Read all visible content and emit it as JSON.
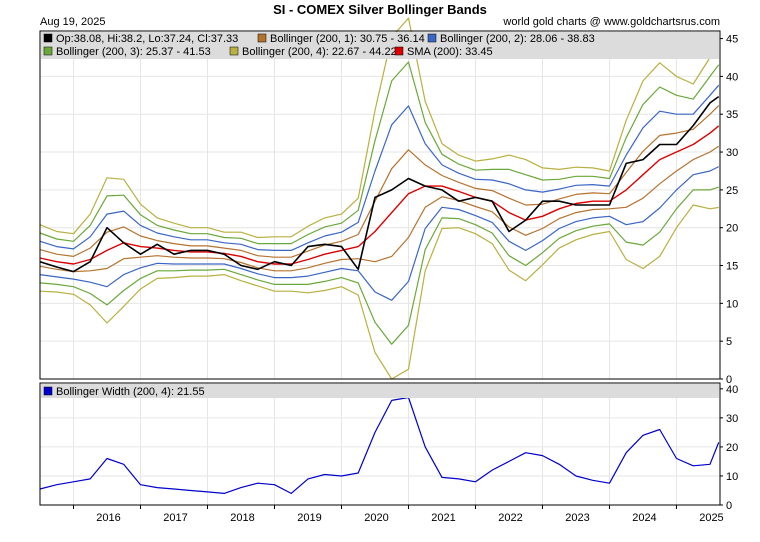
{
  "header": {
    "title": "SI  -  COMEX Silver Bollinger Bands",
    "date": "Aug 19, 2025",
    "credit": "world gold charts @ www.goldchartsrus.com"
  },
  "chart_data": [
    {
      "type": "line",
      "panel": "price",
      "xlim": [
        2015.5,
        2025.65
      ],
      "ylim": [
        0,
        46
      ],
      "y_ticks": [
        0,
        5,
        10,
        15,
        20,
        25,
        30,
        35,
        40,
        45
      ],
      "x_ticks": [
        "2016",
        "2017",
        "2018",
        "2019",
        "2020",
        "2021",
        "2022",
        "2023",
        "2024",
        "2025"
      ],
      "x_tick_positions": [
        2016,
        2017,
        2018,
        2019,
        2020,
        2021,
        2022,
        2023,
        2024,
        2025
      ],
      "grid": true,
      "legend_position": "top",
      "legend": [
        {
          "label": "Op:38.08, Hi:38.2, Lo:37.24, Cl:37.33",
          "color": "#000000"
        },
        {
          "label": "Bollinger (200, 1): 30.75 - 36.14",
          "color": "#b5732e"
        },
        {
          "label": "Bollinger (200, 2): 28.06 - 38.83",
          "color": "#3a66c4"
        },
        {
          "label": "Bollinger (200, 3): 25.37 - 41.53",
          "color": "#6aa83a"
        },
        {
          "label": "Bollinger (200, 4): 22.67 - 44.22",
          "color": "#b9b040"
        },
        {
          "label": "SMA (200): 33.45",
          "color": "#dd0000"
        }
      ],
      "x": [
        2015.5,
        2015.75,
        2016.0,
        2016.25,
        2016.5,
        2016.75,
        2017.0,
        2017.25,
        2017.5,
        2017.75,
        2018.0,
        2018.25,
        2018.5,
        2018.75,
        2019.0,
        2019.25,
        2019.5,
        2019.75,
        2020.0,
        2020.25,
        2020.5,
        2020.75,
        2021.0,
        2021.25,
        2021.5,
        2021.75,
        2022.0,
        2022.25,
        2022.5,
        2022.75,
        2023.0,
        2023.25,
        2023.5,
        2023.75,
        2024.0,
        2024.25,
        2024.5,
        2024.75,
        2025.0,
        2025.25,
        2025.5,
        2025.63
      ],
      "series": [
        {
          "key": "price",
          "color": "#000000",
          "values": [
            15.5,
            14.8,
            14.2,
            15.5,
            20.0,
            18.0,
            16.5,
            17.8,
            16.5,
            17.0,
            17.0,
            16.5,
            15.0,
            14.5,
            15.5,
            15.0,
            17.5,
            17.8,
            17.5,
            14.5,
            24.0,
            25.0,
            26.5,
            25.5,
            25.0,
            23.5,
            24.0,
            23.5,
            19.5,
            21.0,
            23.5,
            23.5,
            23.0,
            23.0,
            23.0,
            28.5,
            29.0,
            31.0,
            31.0,
            33.5,
            36.5,
            37.33
          ]
        },
        {
          "key": "sma",
          "color": "#dd0000",
          "values": [
            16.0,
            15.5,
            15.2,
            15.8,
            17.0,
            18.0,
            17.5,
            17.3,
            17.0,
            16.8,
            16.8,
            16.6,
            16.2,
            15.5,
            15.2,
            15.2,
            15.8,
            16.5,
            17.0,
            17.5,
            19.5,
            22.0,
            24.5,
            25.5,
            25.5,
            24.8,
            24.0,
            23.5,
            22.0,
            21.0,
            21.5,
            22.5,
            23.2,
            23.5,
            23.5,
            25.0,
            27.0,
            29.0,
            30.0,
            31.0,
            32.5,
            33.45
          ]
        },
        {
          "key": "bw1",
          "color": "#b5732e",
          "width": [
            1.1,
            1.0,
            1.0,
            1.5,
            2.4,
            2.1,
            1.4,
            1.0,
            0.9,
            0.8,
            0.8,
            0.7,
            0.8,
            0.8,
            0.9,
            0.9,
            1.1,
            1.2,
            1.2,
            1.6,
            4.0,
            5.8,
            5.8,
            2.8,
            1.4,
            1.2,
            1.2,
            1.4,
            1.9,
            2.0,
            1.6,
            1.3,
            1.2,
            1.1,
            1.0,
            2.3,
            3.1,
            3.2,
            2.5,
            2.0,
            2.5,
            2.69
          ]
        },
        {
          "key": "bw2",
          "color": "#3a66c4",
          "width": [
            2.2,
            2.0,
            2.0,
            3.0,
            4.8,
            4.2,
            2.8,
            2.0,
            1.8,
            1.6,
            1.6,
            1.4,
            1.6,
            1.6,
            1.8,
            1.8,
            2.2,
            2.4,
            2.4,
            3.2,
            8.0,
            11.6,
            11.6,
            5.6,
            2.8,
            2.4,
            2.4,
            2.8,
            3.8,
            4.0,
            3.2,
            2.6,
            2.4,
            2.2,
            2.0,
            4.6,
            6.2,
            6.4,
            5.0,
            4.0,
            5.0,
            5.38
          ]
        },
        {
          "key": "bw3",
          "color": "#6aa83a",
          "width": [
            3.3,
            3.0,
            3.0,
            4.5,
            7.2,
            6.3,
            4.2,
            3.0,
            2.7,
            2.4,
            2.4,
            2.1,
            2.4,
            2.4,
            2.7,
            2.7,
            3.3,
            3.6,
            3.6,
            4.8,
            12.0,
            17.4,
            17.4,
            8.4,
            4.2,
            3.6,
            3.6,
            4.2,
            5.7,
            6.0,
            4.8,
            3.9,
            3.6,
            3.3,
            3.0,
            6.9,
            9.3,
            9.6,
            7.5,
            6.0,
            7.5,
            8.08
          ]
        },
        {
          "key": "bw4",
          "color": "#b9b040",
          "width": [
            4.4,
            4.0,
            4.0,
            6.0,
            9.6,
            8.4,
            5.6,
            4.0,
            3.6,
            3.2,
            3.2,
            2.8,
            3.2,
            3.2,
            3.6,
            3.6,
            4.4,
            4.8,
            4.8,
            6.4,
            16.0,
            23.2,
            23.2,
            11.2,
            5.6,
            4.8,
            4.8,
            5.6,
            7.6,
            8.0,
            6.4,
            5.2,
            4.8,
            4.4,
            4.0,
            9.2,
            12.4,
            12.8,
            10.0,
            8.0,
            10.0,
            10.77
          ]
        }
      ]
    },
    {
      "type": "line",
      "panel": "width",
      "xlim": [
        2015.5,
        2025.65
      ],
      "ylim": [
        0,
        42
      ],
      "y_ticks": [
        0,
        10,
        20,
        30,
        40
      ],
      "grid": true,
      "legend": [
        {
          "label": "Bollinger Width (200, 4): 21.55",
          "color": "#0000cc"
        }
      ],
      "x": [
        2015.5,
        2015.75,
        2016.0,
        2016.25,
        2016.5,
        2016.75,
        2017.0,
        2017.25,
        2017.5,
        2017.75,
        2018.0,
        2018.25,
        2018.5,
        2018.75,
        2019.0,
        2019.25,
        2019.5,
        2019.75,
        2020.0,
        2020.25,
        2020.5,
        2020.75,
        2021.0,
        2021.25,
        2021.5,
        2021.75,
        2022.0,
        2022.25,
        2022.5,
        2022.75,
        2023.0,
        2023.25,
        2023.5,
        2023.75,
        2024.0,
        2024.25,
        2024.5,
        2024.75,
        2025.0,
        2025.25,
        2025.5,
        2025.63
      ],
      "series": [
        {
          "name": "Bollinger Width (200, 4)",
          "color": "#0000cc",
          "values": [
            5.5,
            7.0,
            8.0,
            9.0,
            16.0,
            14.0,
            7.0,
            6.0,
            5.5,
            5.0,
            4.5,
            4.0,
            6.0,
            7.5,
            7.0,
            4.0,
            9.0,
            10.5,
            10.0,
            11.0,
            25.0,
            36.0,
            37.0,
            20.0,
            9.5,
            9.0,
            8.0,
            12.0,
            15.0,
            18.0,
            17.0,
            14.0,
            10.0,
            8.5,
            7.5,
            18.0,
            24.0,
            26.0,
            16.0,
            13.5,
            14.0,
            21.55
          ]
        }
      ]
    }
  ]
}
